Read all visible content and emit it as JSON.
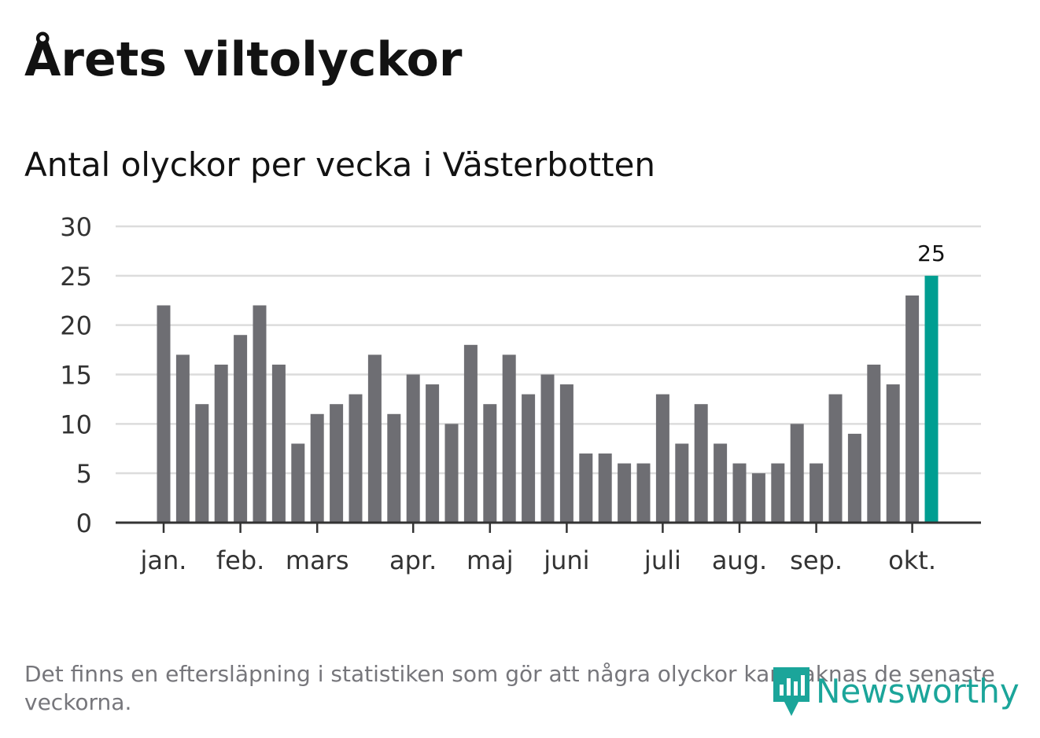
{
  "title": "Årets viltolyckor",
  "subtitle": "Antal olyckor per vecka i Västerbotten",
  "footnote": "Det finns en eftersläpning i statistiken som gör att några olyckor kan saknas de senaste veckorna.",
  "logo": {
    "text": "Newsworthy",
    "icon": "newsworthy-logo-icon"
  },
  "colors": {
    "bar": "#6e6e73",
    "highlight": "#009e91",
    "grid": "#dcdcdc",
    "axis": "#333333",
    "text": "#333333",
    "logo": "#1ba59a"
  },
  "chart_data": {
    "type": "bar",
    "title": "Antal olyckor per vecka i Västerbotten",
    "xlabel": "",
    "ylabel": "",
    "ylim": [
      0,
      30
    ],
    "yticks": [
      0,
      5,
      10,
      15,
      20,
      25,
      30
    ],
    "grid": true,
    "values": [
      22,
      17,
      12,
      16,
      19,
      22,
      16,
      8,
      11,
      12,
      13,
      17,
      11,
      15,
      14,
      10,
      18,
      12,
      17,
      13,
      15,
      14,
      7,
      7,
      6,
      6,
      13,
      8,
      12,
      8,
      6,
      5,
      6,
      10,
      6,
      13,
      9,
      16,
      14,
      23,
      25
    ],
    "highlight_index": 40,
    "highlight_label": "25",
    "month_labels": [
      {
        "label": "jan.",
        "bar_index": 0
      },
      {
        "label": "feb.",
        "bar_index": 4
      },
      {
        "label": "mars",
        "bar_index": 8
      },
      {
        "label": "apr.",
        "bar_index": 13
      },
      {
        "label": "maj",
        "bar_index": 17
      },
      {
        "label": "juni",
        "bar_index": 21
      },
      {
        "label": "juli",
        "bar_index": 26
      },
      {
        "label": "aug.",
        "bar_index": 30
      },
      {
        "label": "sep.",
        "bar_index": 34
      },
      {
        "label": "okt.",
        "bar_index": 39
      }
    ]
  }
}
